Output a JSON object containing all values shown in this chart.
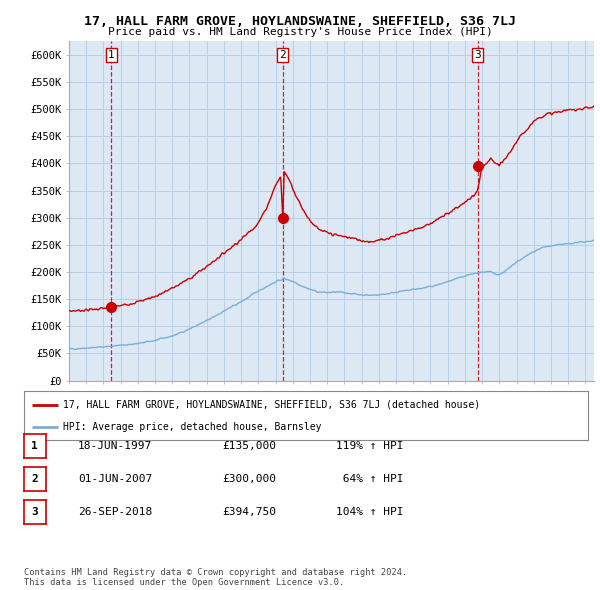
{
  "title": "17, HALL FARM GROVE, HOYLANDSWAINE, SHEFFIELD, S36 7LJ",
  "subtitle": "Price paid vs. HM Land Registry's House Price Index (HPI)",
  "ylim": [
    0,
    625000
  ],
  "yticks": [
    0,
    50000,
    100000,
    150000,
    200000,
    250000,
    300000,
    350000,
    400000,
    450000,
    500000,
    550000,
    600000
  ],
  "ytick_labels": [
    "£0",
    "£50K",
    "£100K",
    "£150K",
    "£200K",
    "£250K",
    "£300K",
    "£350K",
    "£400K",
    "£450K",
    "£500K",
    "£550K",
    "£600K"
  ],
  "sale_dates": [
    1997.46,
    2007.42,
    2018.74
  ],
  "sale_prices": [
    135000,
    300000,
    394750
  ],
  "sale_labels": [
    "1",
    "2",
    "3"
  ],
  "red_color": "#cc0000",
  "blue_color": "#7aaed6",
  "chart_bg": "#dce9f5",
  "background_color": "#ffffff",
  "grid_color": "#b8cfe8",
  "legend_entries": [
    "17, HALL FARM GROVE, HOYLANDSWAINE, SHEFFIELD, S36 7LJ (detached house)",
    "HPI: Average price, detached house, Barnsley"
  ],
  "table_rows": [
    [
      "1",
      "18-JUN-1997",
      "£135,000",
      "119% ↑ HPI"
    ],
    [
      "2",
      "01-JUN-2007",
      "£300,000",
      " 64% ↑ HPI"
    ],
    [
      "3",
      "26-SEP-2018",
      "£394,750",
      "104% ↑ HPI"
    ]
  ],
  "footnote": "Contains HM Land Registry data © Crown copyright and database right 2024.\nThis data is licensed under the Open Government Licence v3.0.",
  "xmin": 1995.0,
  "xmax": 2025.5
}
